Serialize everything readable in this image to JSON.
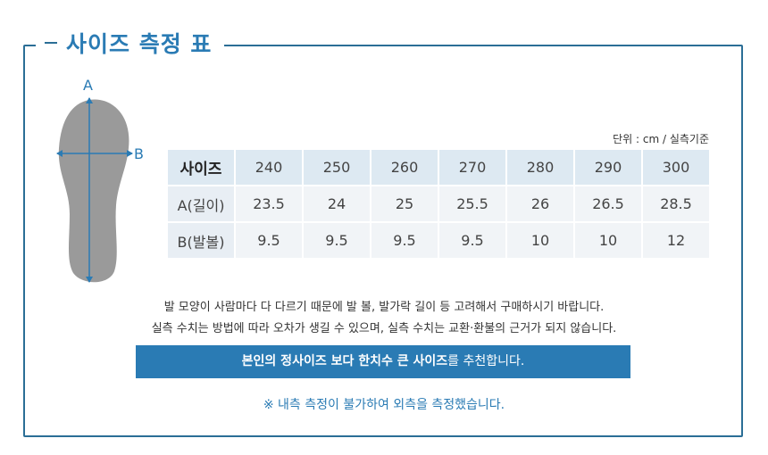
{
  "title": "사이즈 측정 표",
  "diagram": {
    "label_a": "A",
    "label_b": "B"
  },
  "unit_note": "단위 : cm / 실측기준",
  "table": {
    "header_label": "사이즈",
    "sizes": [
      "240",
      "250",
      "260",
      "270",
      "280",
      "290",
      "300"
    ],
    "rows": [
      {
        "label": "A(길이)",
        "values": [
          "23.5",
          "24",
          "25",
          "25.5",
          "26",
          "26.5",
          "28.5"
        ]
      },
      {
        "label": "B(발볼)",
        "values": [
          "9.5",
          "9.5",
          "9.5",
          "9.5",
          "10",
          "10",
          "12"
        ]
      }
    ]
  },
  "notes": [
    "발 모양이 사람마다 다 다르기 때문에 발 볼, 발가락 길이 등 고려해서 구매하시기 바랍니다.",
    "실측 수치는 방법에 따라 오차가 생길 수 있으며, 실측 수치는 교환·환불의 근거가 되지 않습니다."
  ],
  "banner": {
    "bold": "본인의 정사이즈 보다 한치수 큰 사이즈",
    "rest": "를 추천합니다."
  },
  "caution": "※ 내측 측정이 불가하여 외측을 측정했습니다.",
  "colors": {
    "accent": "#2a7bb4",
    "frame": "#2b6e96",
    "foot": "#9a9a9a"
  }
}
